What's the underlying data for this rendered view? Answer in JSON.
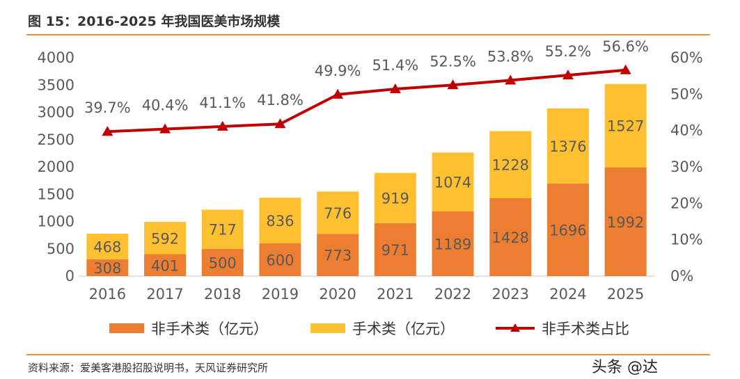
{
  "figure": {
    "title": "图 15：2016-2025 年我国医美市场规模",
    "source": "资料来源：爱美客港股招股说明书，天风证券研究所",
    "watermark": "头条 @达"
  },
  "colors": {
    "non_surgical": "#ED7D31",
    "surgical": "#FFC02F",
    "ratio_line": "#C00000",
    "accent_rule": "#E8912F",
    "text": "#595959"
  },
  "legend": {
    "non_surgical": "非手术类（亿元）",
    "surgical": "手术类（亿元）",
    "ratio": "非手术类占比"
  },
  "chart_data": {
    "type": "bar",
    "stacked": true,
    "categories": [
      "2016",
      "2017",
      "2018",
      "2019",
      "2020",
      "2021",
      "2022",
      "2023",
      "2024",
      "2025"
    ],
    "series": [
      {
        "name": "非手术类（亿元）",
        "values": [
          308,
          401,
          500,
          600,
          773,
          971,
          1189,
          1428,
          1696,
          1992
        ]
      },
      {
        "name": "手术类（亿元）",
        "values": [
          468,
          592,
          717,
          836,
          776,
          919,
          1074,
          1228,
          1376,
          1527
        ]
      }
    ],
    "line_series": {
      "name": "非手术类占比",
      "values": [
        39.7,
        40.4,
        41.1,
        41.8,
        49.9,
        51.4,
        52.5,
        53.8,
        55.2,
        56.6
      ],
      "labels": [
        "39.7%",
        "40.4%",
        "41.1%",
        "41.8%",
        "49.9%",
        "51.4%",
        "52.5%",
        "53.8%",
        "55.2%",
        "56.6%"
      ],
      "axis": "right"
    },
    "ylim": [
      0,
      4000
    ],
    "yticks": [
      "0",
      "500",
      "1000",
      "1500",
      "2000",
      "2500",
      "3000",
      "3500",
      "4000"
    ],
    "y2lim": [
      0,
      60
    ],
    "y2ticks": [
      "0%",
      "10%",
      "20%",
      "30%",
      "40%",
      "50%",
      "60%"
    ],
    "grid": false,
    "legend_position": "bottom"
  }
}
